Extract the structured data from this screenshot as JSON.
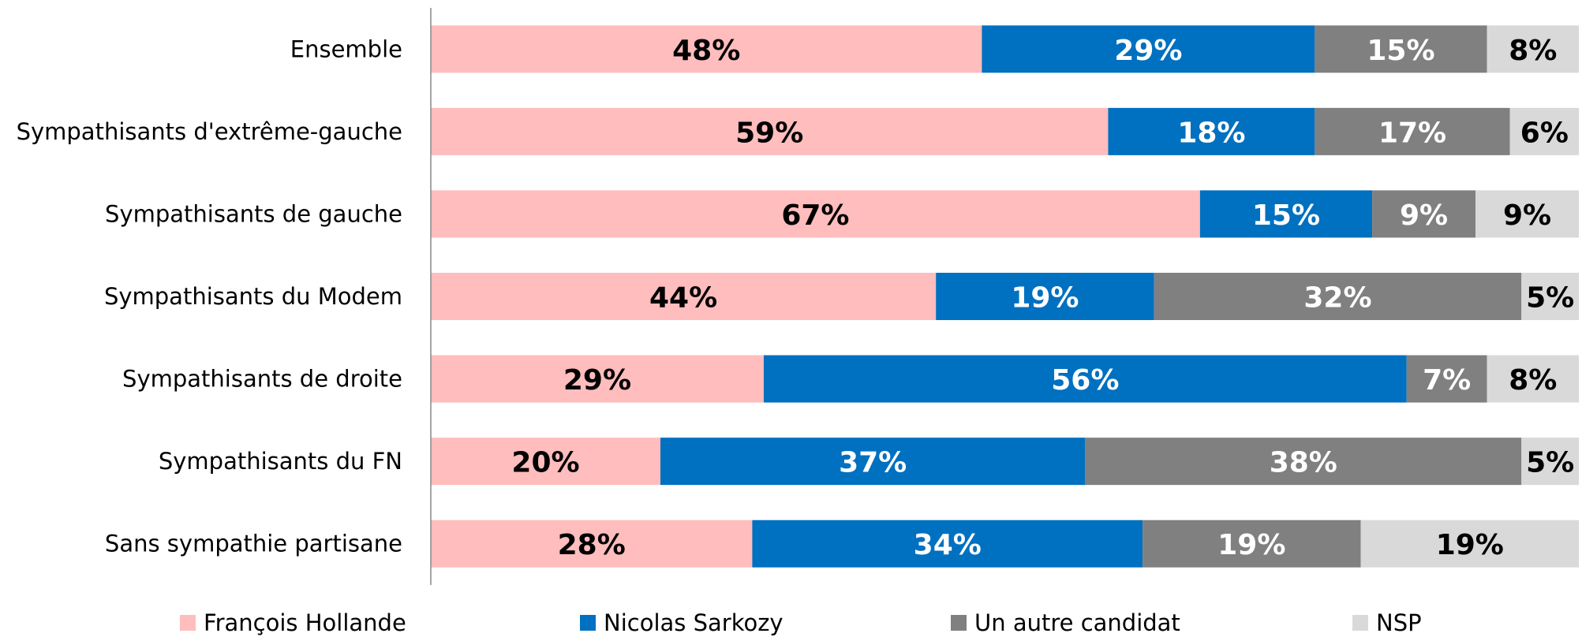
{
  "chart_data": {
    "type": "stacked-bar-horizontal",
    "categories": [
      "Ensemble",
      "Sympathisants d'extrême-gauche",
      "Sympathisants de gauche",
      "Sympathisants du Modem",
      "Sympathisants de droite",
      "Sympathisants du FN",
      "Sans sympathie partisane"
    ],
    "xlim": [
      0,
      100
    ],
    "series": [
      {
        "name": "François Hollande",
        "color": "#FFBDBD",
        "values": [
          48,
          59,
          67,
          44,
          29,
          20,
          28
        ],
        "value_labels": [
          "48%",
          "59%",
          "67%",
          "44%",
          "29%",
          "20%",
          "28%"
        ]
      },
      {
        "name": "Nicolas Sarkozy",
        "color": "#0070C0",
        "values": [
          29,
          18,
          15,
          19,
          56,
          37,
          34
        ],
        "value_labels": [
          "29%",
          "18%",
          "15%",
          "19%",
          "56%",
          "37%",
          "34%"
        ]
      },
      {
        "name": "Un autre candidat",
        "color": "#808080",
        "values": [
          15,
          17,
          9,
          32,
          7,
          38,
          19
        ],
        "value_labels": [
          "15%",
          "17%",
          "9%",
          "32%",
          "7%",
          "38%",
          "19%"
        ]
      },
      {
        "name": "NSP",
        "color": "#D9D9D9",
        "values": [
          8,
          6,
          9,
          5,
          8,
          5,
          19
        ],
        "value_labels": [
          "8%",
          "6%",
          "9%",
          "5%",
          "8%",
          "5%",
          "19%"
        ]
      }
    ],
    "legend": "bottom"
  }
}
